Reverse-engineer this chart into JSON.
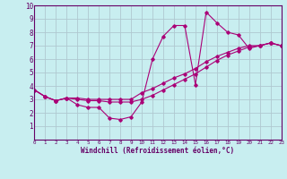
{
  "xlabel": "Windchill (Refroidissement éolien,°C)",
  "bg_color": "#c8eef0",
  "grid_color": "#b0c8d0",
  "line_color": "#aa0077",
  "spine_color": "#660066",
  "xmin": 0,
  "xmax": 23,
  "ymin": 0,
  "ymax": 10,
  "line1_y": [
    3.7,
    3.2,
    2.9,
    3.1,
    2.6,
    2.4,
    2.4,
    1.6,
    1.5,
    1.7,
    2.8,
    6.0,
    7.7,
    8.5,
    8.5,
    4.1,
    9.5,
    8.7,
    8.0,
    7.8,
    6.8,
    7.0,
    7.2,
    7.0
  ],
  "line2_y": [
    3.7,
    3.2,
    2.9,
    3.1,
    3.1,
    3.0,
    3.0,
    3.0,
    3.0,
    3.0,
    3.5,
    3.8,
    4.2,
    4.6,
    4.9,
    5.3,
    5.8,
    6.2,
    6.5,
    6.8,
    7.0,
    7.0,
    7.2,
    7.0
  ],
  "line3_y": [
    3.7,
    3.2,
    2.9,
    3.1,
    3.0,
    2.9,
    2.9,
    2.8,
    2.8,
    2.8,
    3.0,
    3.3,
    3.7,
    4.1,
    4.5,
    4.9,
    5.4,
    5.9,
    6.3,
    6.6,
    6.9,
    7.0,
    7.2,
    7.0
  ],
  "xtick_fontsize": 4.2,
  "ytick_fontsize": 5.5,
  "xlabel_fontsize": 5.5
}
